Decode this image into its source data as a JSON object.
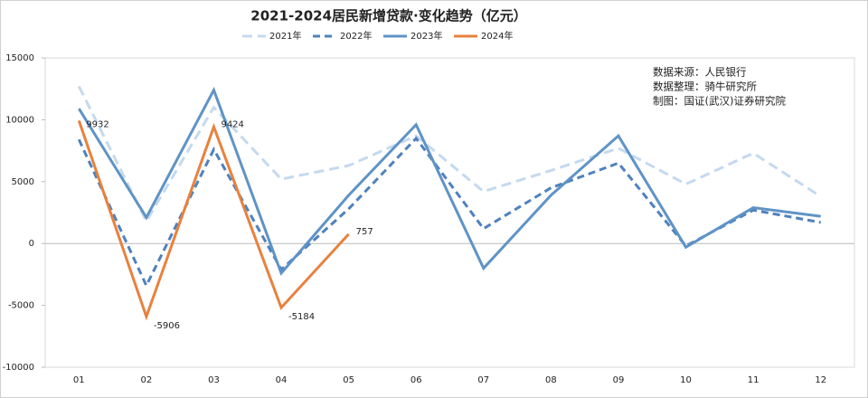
{
  "chart_data": {
    "type": "line",
    "title": "2021-2024居民新增贷款·变化趋势（亿元）",
    "annotations": [
      "数据来源：人民银行",
      "数据整理：骑牛研究所",
      "制图：国证(武汉)证券研究院"
    ],
    "categories": [
      "01",
      "02",
      "03",
      "04",
      "05",
      "06",
      "07",
      "08",
      "09",
      "10",
      "11",
      "12"
    ],
    "series": [
      {
        "name": "2021年",
        "color": "#c5d9ee",
        "style": "dashed",
        "values": [
          12700,
          1800,
          11000,
          5200,
          6300,
          8700,
          4200,
          5900,
          7700,
          4800,
          7300,
          3800
        ]
      },
      {
        "name": "2022年",
        "color": "#4f81bd",
        "style": "dashed",
        "values": [
          8400,
          -3400,
          7600,
          -2100,
          2800,
          8500,
          1200,
          4500,
          6500,
          -200,
          2700,
          1700
        ]
      },
      {
        "name": "2023年",
        "color": "#5f93c6",
        "style": "solid",
        "values": [
          10900,
          2100,
          12400,
          -2400,
          3900,
          9600,
          -2000,
          3900,
          8700,
          -300,
          2900,
          2200
        ]
      },
      {
        "name": "2024年",
        "color": "#e8813e",
        "style": "solid",
        "labels": true,
        "values": [
          9932,
          -5906,
          9424,
          -5184,
          757,
          null,
          null,
          null,
          null,
          null,
          null,
          null
        ]
      }
    ],
    "ylim": [
      -10000,
      15000
    ],
    "yticks": [
      -10000,
      -5000,
      0,
      5000,
      10000,
      15000
    ],
    "grid": false
  }
}
